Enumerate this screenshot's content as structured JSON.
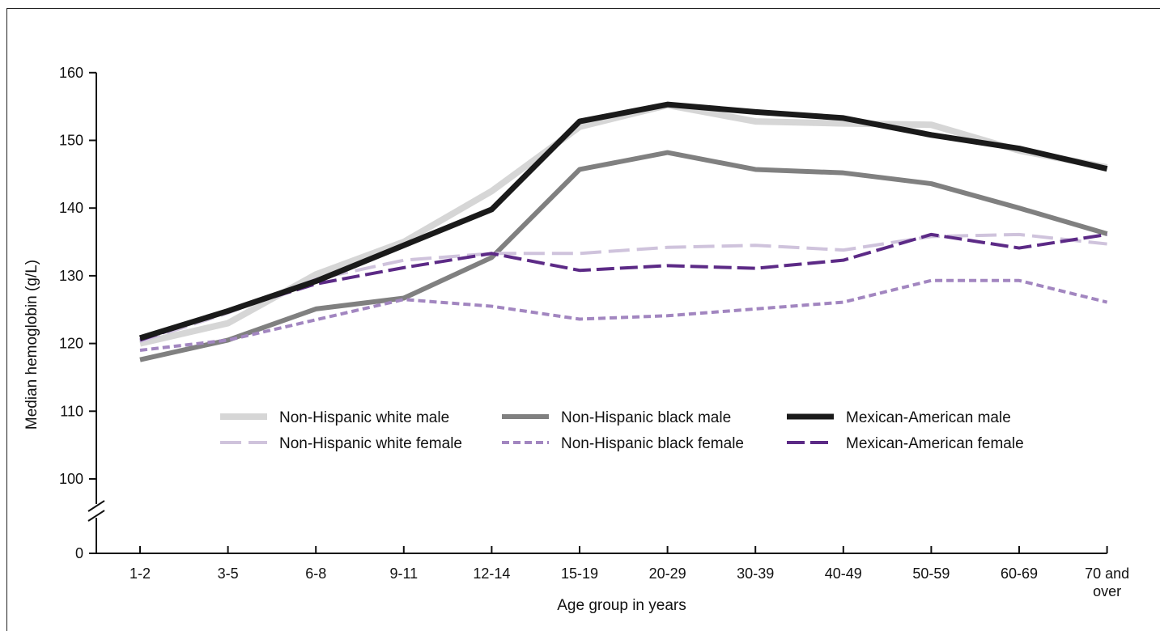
{
  "chart_data": {
    "type": "line",
    "xlabel": "Age group in years",
    "ylabel": "Median hemoglobin (g/L)",
    "categories": [
      "1-2",
      "3-5",
      "6-8",
      "9-11",
      "12-14",
      "15-19",
      "20-29",
      "30-39",
      "40-49",
      "50-59",
      "60-69",
      "70 and over"
    ],
    "y_ticks": [
      0,
      100,
      110,
      120,
      130,
      140,
      150,
      160
    ],
    "ylim": [
      95,
      160
    ],
    "axis_break": true,
    "grid": false,
    "legend_position": "center",
    "series": [
      {
        "name": "Non-Hispanic white male",
        "color": "#d6d6d6",
        "style": "solid-thick",
        "values": [
          120,
          123,
          130.2,
          135,
          142.5,
          152,
          155.2,
          152.8,
          152.5,
          152.3,
          148.5,
          146
        ]
      },
      {
        "name": "Non-Hispanic black male",
        "color": "#808080",
        "style": "solid",
        "values": [
          117.6,
          120.5,
          125.1,
          126.7,
          132.7,
          145.7,
          148.2,
          145.7,
          145.2,
          143.6,
          140,
          136.2
        ]
      },
      {
        "name": "Mexican-American male",
        "color": "#1a1a1a",
        "style": "solid-heavy",
        "values": [
          120.8,
          124.8,
          129.2,
          134.5,
          139.8,
          152.8,
          155.3,
          154.2,
          153.3,
          150.8,
          148.8,
          145.8
        ]
      },
      {
        "name": "Non-Hispanic white female",
        "color": "#cfc3dc",
        "style": "long-dash",
        "values": [
          120.3,
          124.5,
          129.5,
          132.3,
          133.3,
          133.3,
          134.2,
          134.5,
          133.8,
          135.8,
          136.1,
          134.7
        ]
      },
      {
        "name": "Non-Hispanic black female",
        "color": "#a286c0",
        "style": "short-dash",
        "values": [
          119,
          120.5,
          123.5,
          126.5,
          125.5,
          123.6,
          124.1,
          125.1,
          126.1,
          129.3,
          129.3,
          126.1
        ]
      },
      {
        "name": "Mexican-American female",
        "color": "#5c2a86",
        "style": "dash",
        "values": [
          120.5,
          124.8,
          128.8,
          131.2,
          133.3,
          130.8,
          131.5,
          131.1,
          132.3,
          136.1,
          134.1,
          136.1
        ]
      }
    ]
  }
}
